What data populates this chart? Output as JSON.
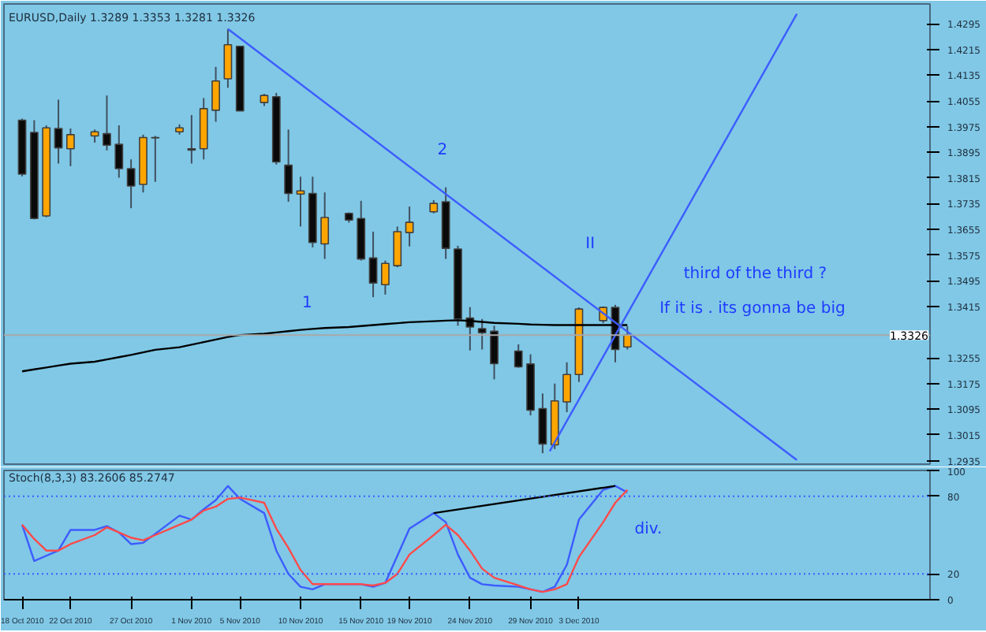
{
  "chart_data": [
    {
      "type": "candlestick",
      "title": "EURUSD,Daily 1.3289 1.3353 1.3281 1.3326",
      "x": [
        "2010-10-18",
        "2010-10-19",
        "2010-10-20",
        "2010-10-21",
        "2010-10-22",
        "2010-10-24",
        "2010-10-25",
        "2010-10-26",
        "2010-10-27",
        "2010-10-28",
        "2010-10-29",
        "2010-10-31",
        "2010-11-01",
        "2010-11-02",
        "2010-11-03",
        "2010-11-04",
        "2010-11-05",
        "2010-11-07",
        "2010-11-08",
        "2010-11-09",
        "2010-11-10",
        "2010-11-11",
        "2010-11-12",
        "2010-11-14",
        "2010-11-15",
        "2010-11-16",
        "2010-11-17",
        "2010-11-18",
        "2010-11-19",
        "2010-11-21",
        "2010-11-22",
        "2010-11-23",
        "2010-11-24",
        "2010-11-25",
        "2010-11-26",
        "2010-11-28",
        "2010-11-29",
        "2010-11-30",
        "2010-12-01",
        "2010-12-02",
        "2010-12-03",
        "2010-12-05",
        "2010-12-06",
        "2010-12-07"
      ],
      "ohlc": [
        [
          1.3995,
          1.4,
          1.382,
          1.3827
        ],
        [
          1.3957,
          1.3995,
          1.3686,
          1.3689
        ],
        [
          1.3697,
          1.3979,
          1.3693,
          1.3971
        ],
        [
          1.3969,
          1.4059,
          1.386,
          1.3909
        ],
        [
          1.3906,
          1.3969,
          1.3852,
          1.395
        ],
        [
          1.3946,
          1.3966,
          1.3925,
          1.3959
        ],
        [
          1.3953,
          1.4072,
          1.3901,
          1.3917
        ],
        [
          1.392,
          1.3979,
          1.3816,
          1.3844
        ],
        [
          1.3844,
          1.3873,
          1.3721,
          1.379
        ],
        [
          1.3795,
          1.395,
          1.377,
          1.3941
        ],
        [
          1.3941,
          1.3946,
          1.3803,
          1.394
        ],
        [
          1.3959,
          1.3982,
          1.395,
          1.3971
        ],
        [
          1.3906,
          1.4011,
          1.386,
          1.3902
        ],
        [
          1.3906,
          1.4064,
          1.3873,
          1.4031
        ],
        [
          1.4026,
          1.4161,
          1.399,
          1.4117
        ],
        [
          1.4124,
          1.4279,
          1.4096,
          1.423
        ],
        [
          1.4225,
          1.4226,
          1.4023,
          1.4024
        ],
        [
          1.405,
          1.4077,
          1.4039,
          1.4072
        ],
        [
          1.4068,
          1.408,
          1.3857,
          1.3865
        ],
        [
          1.3855,
          1.3966,
          1.3741,
          1.3767
        ],
        [
          1.3765,
          1.3819,
          1.3664,
          1.3775
        ],
        [
          1.3767,
          1.3819,
          1.3599,
          1.3614
        ],
        [
          1.361,
          1.377,
          1.3563,
          1.3692
        ],
        [
          1.3705,
          1.3708,
          1.3676,
          1.3684
        ],
        [
          1.3689,
          1.3744,
          1.3558,
          1.3563
        ],
        [
          1.3566,
          1.3648,
          1.3444,
          1.3488
        ],
        [
          1.3483,
          1.3558,
          1.3452,
          1.3549
        ],
        [
          1.3542,
          1.3664,
          1.3537,
          1.3648
        ],
        [
          1.3645,
          1.3726,
          1.3602,
          1.3677
        ],
        [
          1.371,
          1.3746,
          1.3705,
          1.3736
        ],
        [
          1.3741,
          1.3786,
          1.3563,
          1.3596
        ],
        [
          1.3594,
          1.3604,
          1.3355,
          1.3376
        ],
        [
          1.3379,
          1.3413,
          1.3278,
          1.3351
        ],
        [
          1.3346,
          1.3376,
          1.3281,
          1.3333
        ],
        [
          1.3338,
          1.3355,
          1.3188,
          1.3237
        ],
        [
          1.3276,
          1.3297,
          1.3224,
          1.3227
        ],
        [
          1.3236,
          1.3266,
          1.3076,
          1.3092
        ],
        [
          1.3097,
          1.3144,
          1.2958,
          1.2987
        ],
        [
          1.2984,
          1.3175,
          1.2971,
          1.3121
        ],
        [
          1.3118,
          1.3241,
          1.3086,
          1.3203
        ],
        [
          1.3203,
          1.3412,
          1.318,
          1.3407
        ],
        [
          1.3371,
          1.3415,
          1.3363,
          1.3412
        ],
        [
          1.3412,
          1.342,
          1.3241,
          1.3281
        ],
        [
          1.3289,
          1.3353,
          1.3281,
          1.3326
        ]
      ],
      "series": [
        {
          "type": "line",
          "color": "#000000",
          "values": [
            1.3213,
            1.3219,
            1.3225,
            1.3231,
            1.3237,
            1.3243,
            1.325,
            1.3257,
            1.3264,
            1.3272,
            1.328,
            1.3288,
            1.3296,
            1.3304,
            1.3312,
            1.332,
            1.3326,
            1.333,
            1.3334,
            1.3338,
            1.3342,
            1.3345,
            1.3348,
            1.3351,
            1.3354,
            1.3357,
            1.336,
            1.3363,
            1.3366,
            1.3369,
            1.3371,
            1.3372,
            1.337,
            1.3367,
            1.3364,
            1.3361,
            1.3359,
            1.3358,
            1.3357,
            1.3357,
            1.3357,
            1.3357,
            1.3357,
            1.3357
          ]
        },
        {
          "type": "line",
          "color": "#3d5cff",
          "x": [
            "2010-11-04",
            "2010-12-21"
          ],
          "values": [
            1.4279,
            1.2937
          ]
        },
        {
          "type": "line",
          "color": "#3d5cff",
          "x": [
            "2010-11-30T14:00",
            "2010-12-21"
          ],
          "values": [
            1.2964,
            1.4326
          ]
        }
      ],
      "xlim": [
        "2010-10-16T12:00",
        "2011-01-01"
      ],
      "ylim": [
        1.2924,
        1.4357
      ],
      "yticks": [
        1.4295,
        1.4215,
        1.4135,
        1.4055,
        1.3975,
        1.3895,
        1.3815,
        1.3735,
        1.3655,
        1.3575,
        1.3495,
        1.3415,
        1.3255,
        1.3175,
        1.3095,
        1.3015,
        1.2935
      ],
      "tick_labels": "y",
      "ref_lines": [
        {
          "axis": "y",
          "value": 1.3326,
          "label": "1.3326",
          "color": "#a8a8a8"
        }
      ],
      "annotations": [
        "1",
        "2",
        "II",
        "third of the third ?",
        "If it is . its gonna be big"
      ]
    },
    {
      "type": "line",
      "title": "Stoch(8,3,3) 83.2606 85.2747",
      "x": [
        "2010-10-18",
        "2010-10-19",
        "2010-10-20",
        "2010-10-21",
        "2010-10-22",
        "2010-10-24",
        "2010-10-25",
        "2010-10-26",
        "2010-10-27",
        "2010-10-28",
        "2010-10-29",
        "2010-10-31",
        "2010-11-01",
        "2010-11-02",
        "2010-11-03",
        "2010-11-04",
        "2010-11-05",
        "2010-11-07",
        "2010-11-08",
        "2010-11-09",
        "2010-11-10",
        "2010-11-11",
        "2010-11-12",
        "2010-11-14",
        "2010-11-15",
        "2010-11-16",
        "2010-11-17",
        "2010-11-18",
        "2010-11-19",
        "2010-11-21",
        "2010-11-22",
        "2010-11-23",
        "2010-11-24",
        "2010-11-25",
        "2010-11-26",
        "2010-11-28",
        "2010-11-29",
        "2010-11-30",
        "2010-12-01",
        "2010-12-02",
        "2010-12-03",
        "2010-12-05",
        "2010-12-06",
        "2010-12-07"
      ],
      "series": [
        {
          "color": "#3d5cff",
          "values": [
            58,
            30,
            34,
            38,
            54,
            54,
            57,
            52,
            43,
            44,
            51,
            65,
            62,
            70,
            77,
            88,
            78,
            67,
            38,
            20,
            10,
            8,
            12,
            12,
            12,
            10,
            13,
            34,
            55,
            67,
            60,
            35,
            17,
            12,
            11,
            10,
            8,
            6,
            10,
            27,
            62,
            85,
            88,
            83
          ]
        },
        {
          "color": "#ff4a4a",
          "values": [
            58,
            47,
            38,
            38,
            43,
            50,
            56,
            52,
            48,
            46,
            50,
            58,
            62,
            69,
            72,
            78,
            79,
            75,
            55,
            40,
            23,
            12,
            12,
            12,
            12,
            11,
            13,
            20,
            35,
            50,
            58,
            50,
            38,
            24,
            17,
            11,
            8,
            6,
            8,
            12,
            33,
            60,
            75,
            85
          ]
        },
        {
          "color": "#000000",
          "x": [
            "2010-11-21",
            "2010-12-06"
          ],
          "values": [
            67,
            88
          ]
        }
      ],
      "xlim": [
        "2010-10-16T12:00",
        "2011-01-01"
      ],
      "ylim": [
        0,
        100
      ],
      "yticks": [
        0,
        20,
        80,
        100
      ],
      "xticks": [
        {
          "value": "2010-10-18",
          "label": "18 Oct 2010"
        },
        {
          "value": "2010-10-22",
          "label": "22 Oct 2010"
        },
        {
          "value": "2010-10-27",
          "label": "27 Oct 2010"
        },
        {
          "value": "2010-11-01",
          "label": "1 Nov 2010"
        },
        {
          "value": "2010-11-05",
          "label": "5 Nov 2010"
        },
        {
          "value": "2010-11-10",
          "label": "10 Nov 2010"
        },
        {
          "value": "2010-11-15",
          "label": "15 Nov 2010"
        },
        {
          "value": "2010-11-19",
          "label": "19 Nov 2010"
        },
        {
          "value": "2010-11-24",
          "label": "24 Nov 2010"
        },
        {
          "value": "2010-11-29",
          "label": "29 Nov 2010"
        },
        {
          "value": "2010-12-03",
          "label": "3 Dec 2010"
        }
      ],
      "ref_lines": [
        {
          "axis": "y",
          "value": 20,
          "color": "#3d5cff",
          "line_style": "dotted"
        },
        {
          "axis": "y",
          "value": 80,
          "color": "#3d5cff",
          "line_style": "dotted"
        }
      ],
      "annotations": [
        "div."
      ]
    }
  ]
}
